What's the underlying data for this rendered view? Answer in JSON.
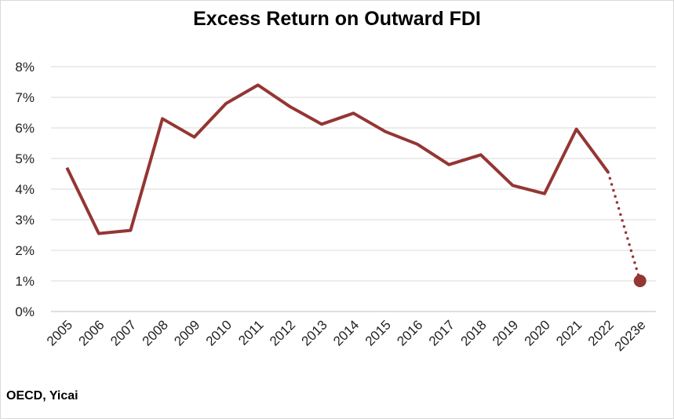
{
  "chart_data": {
    "type": "line",
    "title": "Excess Return on Outward FDI",
    "source": "OECD, Yicai",
    "categories": [
      "2005",
      "2006",
      "2007",
      "2008",
      "2009",
      "2010",
      "2011",
      "2012",
      "2013",
      "2014",
      "2015",
      "2016",
      "2017",
      "2018",
      "2019",
      "2020",
      "2021",
      "2022",
      "2023e"
    ],
    "series": [
      {
        "values": [
          4.7,
          2.55,
          2.65,
          6.3,
          5.7,
          6.8,
          7.4,
          6.7,
          6.12,
          6.48,
          5.88,
          5.47,
          4.8,
          5.12,
          4.12,
          3.85,
          5.96,
          4.55,
          null
        ],
        "color": "#943634"
      },
      {
        "values": [
          null,
          null,
          null,
          null,
          null,
          null,
          null,
          null,
          null,
          null,
          null,
          null,
          null,
          null,
          null,
          null,
          null,
          4.55,
          1.0
        ],
        "color": "#943634",
        "style": "dotted",
        "end_marker": "circle"
      }
    ],
    "ylim": [
      0,
      8
    ],
    "yticks": [
      0,
      1,
      2,
      3,
      4,
      5,
      6,
      7,
      8
    ],
    "ytick_labels": [
      "0%",
      "1%",
      "2%",
      "3%",
      "4%",
      "5%",
      "6%",
      "7%",
      "8%"
    ],
    "grid": true,
    "xlabel": "",
    "ylabel": ""
  }
}
